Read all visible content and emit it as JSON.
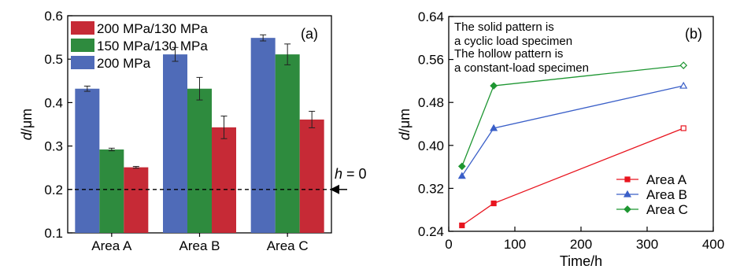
{
  "chart_data": [
    {
      "type": "bar",
      "panel_label": "(a)",
      "categories": [
        "Area A",
        "Area B",
        "Area C"
      ],
      "series": [
        {
          "name": "200 MPa",
          "color": "#4f6bb8",
          "values": [
            0.432,
            0.511,
            0.549
          ],
          "errors": [
            0.006,
            0.016,
            0.007
          ]
        },
        {
          "name": "150 MPa/130 MPa",
          "color": "#2e8b3e",
          "values": [
            0.292,
            0.432,
            0.511
          ],
          "errors": [
            0.003,
            0.026,
            0.024
          ]
        },
        {
          "name": "200 MPa/130 MPa",
          "color": "#c62a36",
          "values": [
            0.251,
            0.343,
            0.361
          ],
          "errors": [
            0.002,
            0.026,
            0.019
          ]
        }
      ],
      "legend_order": [
        "200 MPa/130 MPa",
        "150 MPa/130 MPa",
        "200 MPa"
      ],
      "legend_position": "top-left",
      "ylabel_italic": "d",
      "ylabel_rest": "/μm",
      "ylim": [
        0.1,
        0.6
      ],
      "yticks": [
        "0.1",
        "0.2",
        "0.3",
        "0.4",
        "0.5",
        "0.6"
      ],
      "reference_line": {
        "y": 0.2,
        "label_italic": "h",
        "label_rest": " = 0"
      }
    },
    {
      "type": "line",
      "panel_label": "(b)",
      "annotation": [
        "The solid pattern is",
        "a cyclic load specimen",
        "The hollow pattern is",
        "a constant-load specimen"
      ],
      "xlabel": "Time/h",
      "ylabel_italic": "d",
      "ylabel_rest": "/μm",
      "xlim": [
        0,
        400
      ],
      "ylim": [
        0.24,
        0.64
      ],
      "xticks": [
        "0",
        "100",
        "200",
        "300",
        "400"
      ],
      "yticks": [
        "0.24",
        "0.32",
        "0.40",
        "0.48",
        "0.56",
        "0.64"
      ],
      "x": [
        20,
        68,
        355
      ],
      "hollow_last_point": true,
      "series": [
        {
          "name": "Area A",
          "color": "#e8141e",
          "marker": "square",
          "values": [
            0.251,
            0.292,
            0.432
          ]
        },
        {
          "name": "Area B",
          "color": "#3a5fc8",
          "marker": "triangle",
          "values": [
            0.343,
            0.432,
            0.511
          ]
        },
        {
          "name": "Area C",
          "color": "#1e9632",
          "marker": "diamond",
          "values": [
            0.361,
            0.511,
            0.549
          ]
        }
      ],
      "legend_position": "bottom-right"
    }
  ]
}
